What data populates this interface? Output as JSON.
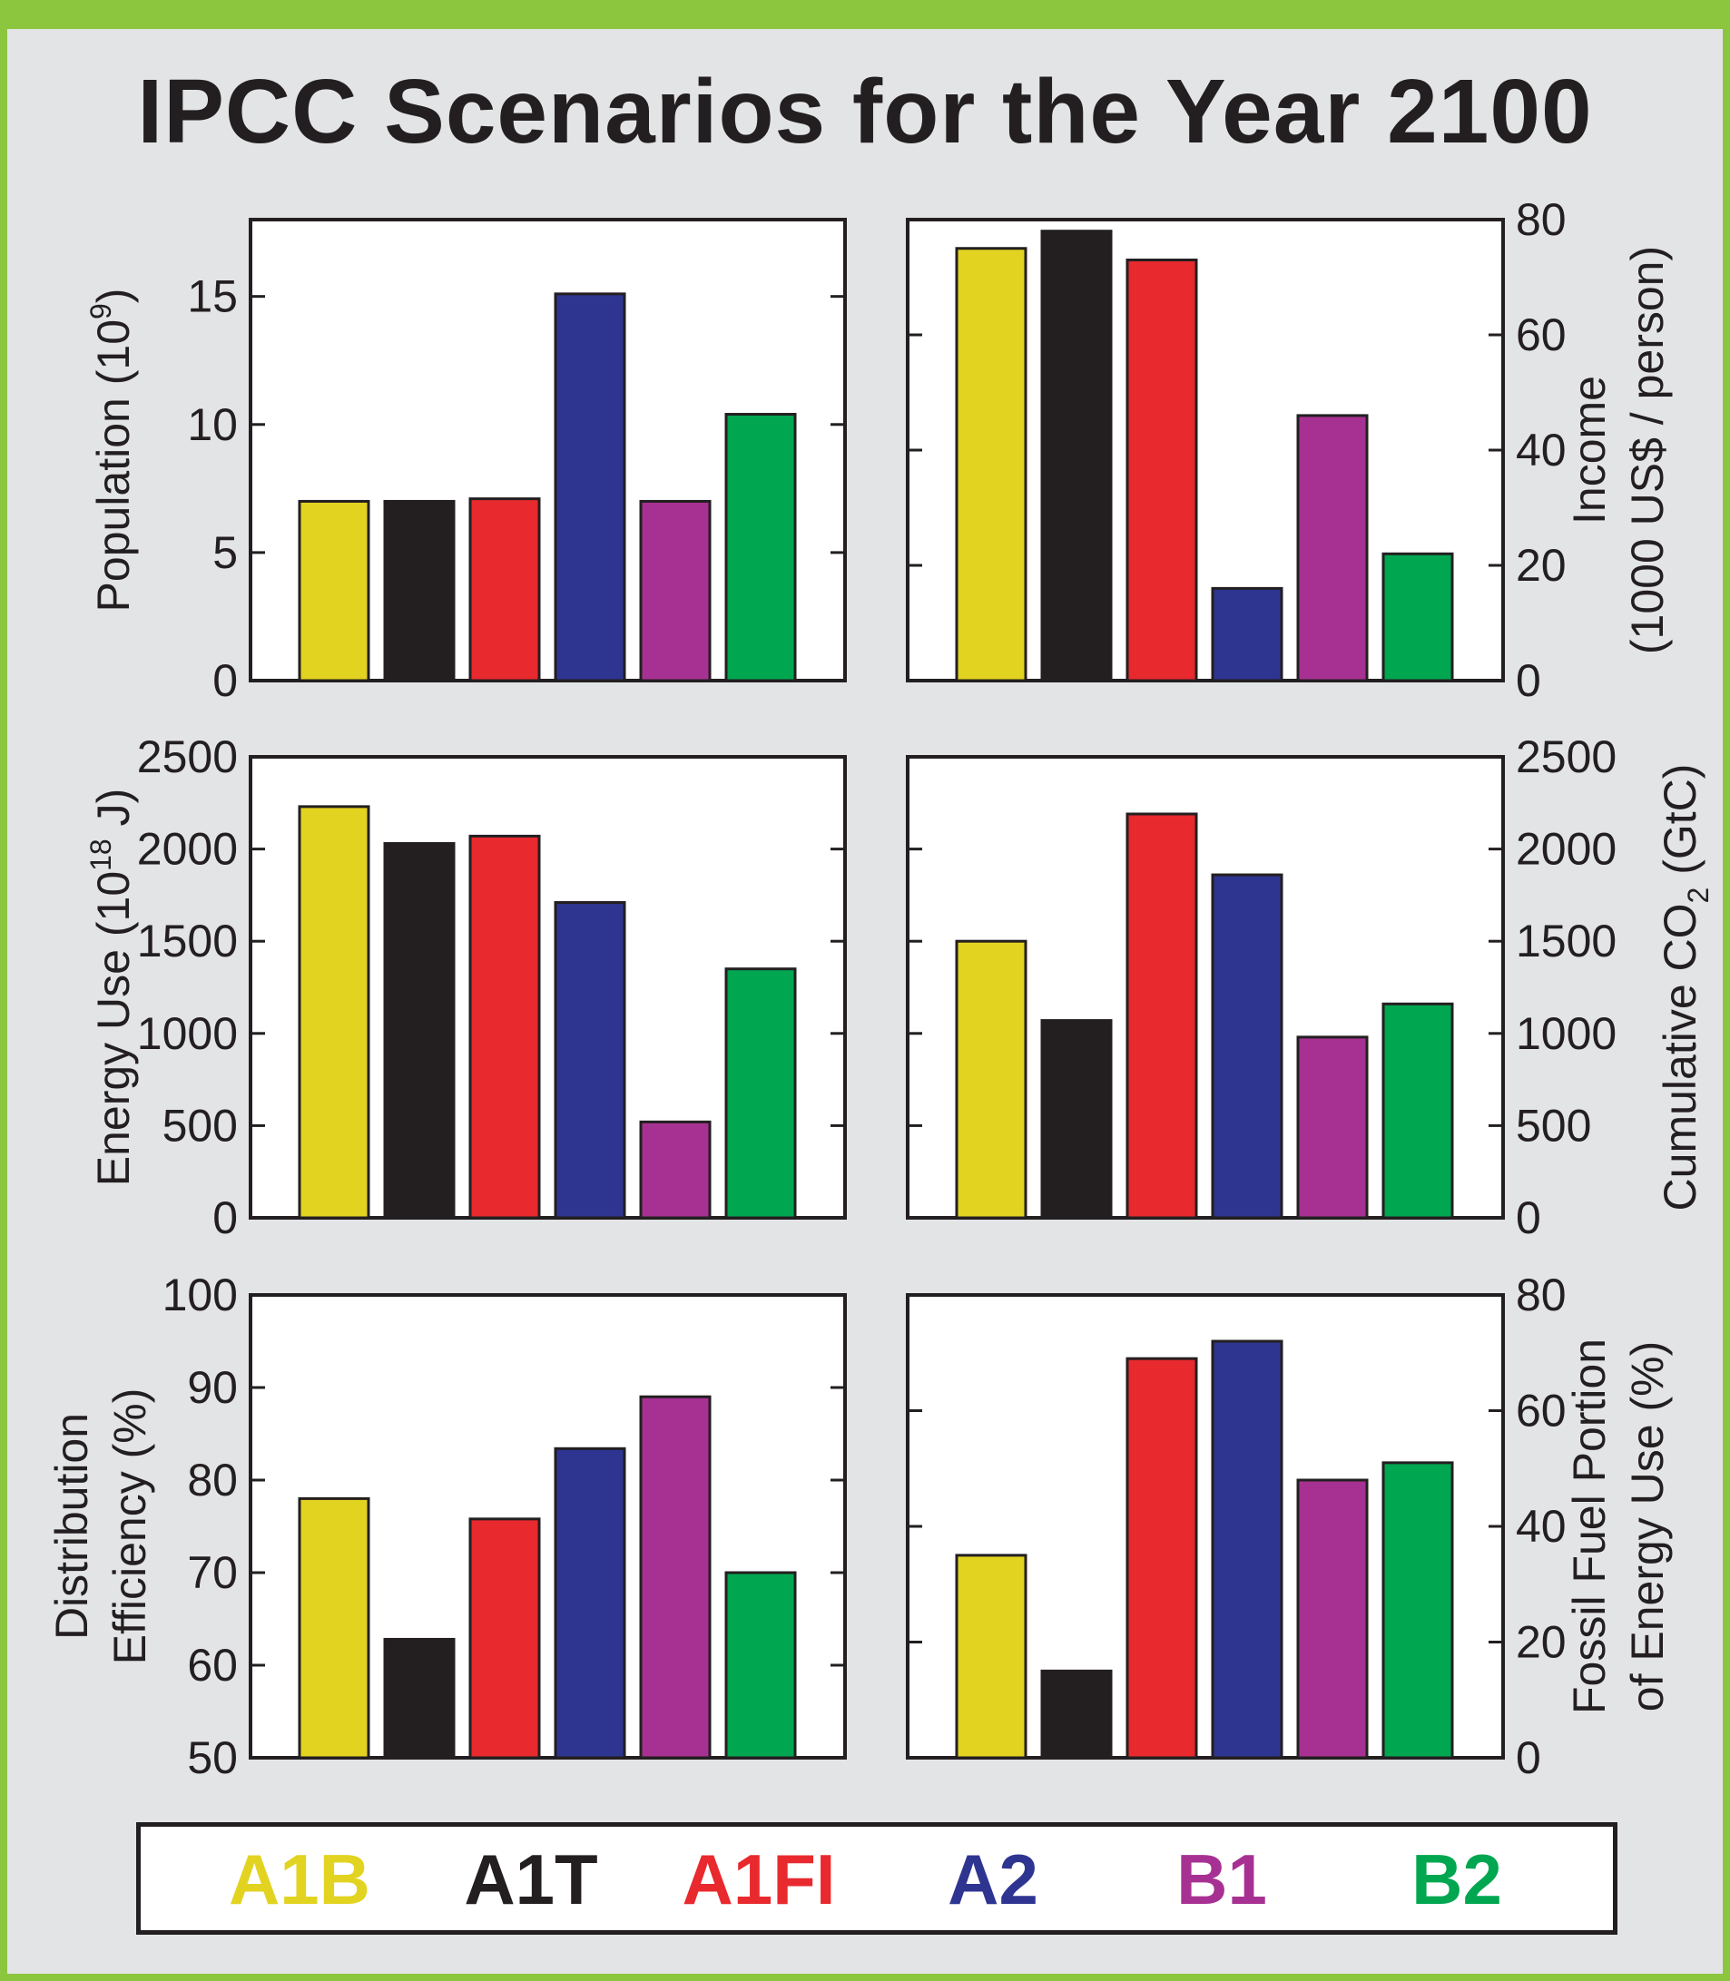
{
  "title": "IPCC Scenarios for the Year 2100",
  "colors": {
    "A1B": "#e3d321",
    "A1T": "#231f20",
    "A1FI": "#e8292e",
    "A2": "#2e3591",
    "B1": "#a73192",
    "B2": "#00a650"
  },
  "legend": [
    {
      "label": "A1B",
      "color": "#e3d321"
    },
    {
      "label": "A1T",
      "color": "#231f20"
    },
    {
      "label": "A1FI",
      "color": "#e8292e"
    },
    {
      "label": "A2",
      "color": "#2e3591"
    },
    {
      "label": "B1",
      "color": "#a73192"
    },
    {
      "label": "B2",
      "color": "#00a650"
    }
  ],
  "chart_data": [
    {
      "id": "population",
      "type": "bar",
      "categories": [
        "A1B",
        "A1T",
        "A1FI",
        "A2",
        "B1",
        "B2"
      ],
      "values": [
        7.0,
        7.0,
        7.1,
        15.1,
        7.0,
        10.4
      ],
      "ylabel_lines": [
        "Population (10",
        "9",
        ")"
      ],
      "ylim": [
        0,
        18
      ],
      "yticks": [
        0,
        5,
        10,
        15
      ],
      "axis_side": "left"
    },
    {
      "id": "income",
      "type": "bar",
      "categories": [
        "A1B",
        "A1T",
        "A1FI",
        "A2",
        "B1",
        "B2"
      ],
      "values": [
        75,
        78,
        73,
        16,
        46,
        22
      ],
      "ylabel_lines": [
        "Income",
        "(1000 US$ / person)"
      ],
      "ylim": [
        0,
        80
      ],
      "yticks": [
        0,
        20,
        40,
        60,
        80
      ],
      "axis_side": "right"
    },
    {
      "id": "energy-use",
      "type": "bar",
      "categories": [
        "A1B",
        "A1T",
        "A1FI",
        "A2",
        "B1",
        "B2"
      ],
      "values": [
        2230,
        2030,
        2070,
        1710,
        520,
        1350
      ],
      "ylabel_lines": [
        "Energy Use (10",
        "18",
        " J)"
      ],
      "ylim": [
        0,
        2500
      ],
      "yticks": [
        0,
        500,
        1000,
        1500,
        2000,
        2500
      ],
      "axis_side": "left"
    },
    {
      "id": "cumulative-co2",
      "type": "bar",
      "categories": [
        "A1B",
        "A1T",
        "A1FI",
        "A2",
        "B1",
        "B2"
      ],
      "values": [
        1500,
        1070,
        2190,
        1860,
        980,
        1160
      ],
      "ylabel_lines": [
        "Cumulative CO",
        "2",
        " (GtC)"
      ],
      "ylim": [
        0,
        2500
      ],
      "yticks": [
        0,
        500,
        1000,
        1500,
        2000,
        2500
      ],
      "axis_side": "right"
    },
    {
      "id": "distribution-efficiency",
      "type": "bar",
      "categories": [
        "A1B",
        "A1T",
        "A1FI",
        "A2",
        "B1",
        "B2"
      ],
      "values": [
        78,
        62.8,
        75.8,
        83.4,
        89,
        70
      ],
      "ylabel_lines": [
        "Distribution",
        "Efficiency (%)"
      ],
      "ylim": [
        50,
        100
      ],
      "yticks": [
        50,
        60,
        70,
        80,
        90,
        100
      ],
      "axis_side": "left"
    },
    {
      "id": "fossil-fuel-portion",
      "type": "bar",
      "categories": [
        "A1B",
        "A1T",
        "A1FI",
        "A2",
        "B1",
        "B2"
      ],
      "values": [
        35,
        15,
        69,
        72,
        48,
        51
      ],
      "ylabel_lines": [
        "Fossil Fuel Portion",
        "of Energy Use (%)"
      ],
      "ylim": [
        0,
        80
      ],
      "yticks": [
        0,
        20,
        40,
        60,
        80
      ],
      "axis_side": "right"
    }
  ]
}
